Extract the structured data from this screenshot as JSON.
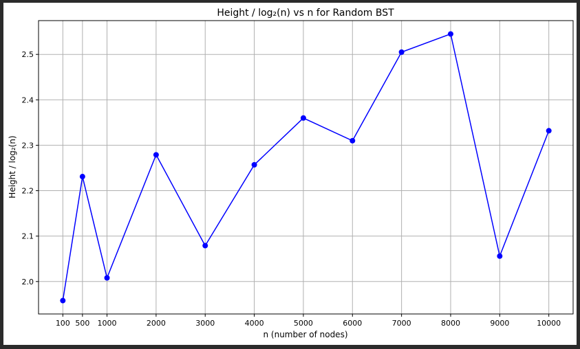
{
  "chart_data": {
    "type": "line",
    "title": "Height / log₂(n) vs n for Random BST",
    "xlabel": "n (number of nodes)",
    "ylabel": "Height / log₂(n)",
    "x": [
      100,
      500,
      1000,
      2000,
      3000,
      4000,
      5000,
      6000,
      7000,
      8000,
      9000,
      10000
    ],
    "series": [
      {
        "values": [
          1.958,
          2.231,
          2.008,
          2.279,
          2.079,
          2.257,
          2.36,
          2.31,
          2.505,
          2.545,
          2.056,
          2.332
        ],
        "color": "#0000ff",
        "marker": "circle"
      }
    ],
    "xticks": [
      100,
      500,
      1000,
      2000,
      3000,
      4000,
      5000,
      6000,
      7000,
      8000,
      9000,
      10000
    ],
    "xtick_labels": [
      "100",
      "500",
      "1000",
      "2000",
      "3000",
      "4000",
      "5000",
      "6000",
      "7000",
      "8000",
      "9000",
      "10000"
    ],
    "yticks": [
      2.0,
      2.1,
      2.2,
      2.3,
      2.4,
      2.5
    ],
    "ytick_labels": [
      "2.0",
      "2.1",
      "2.2",
      "2.3",
      "2.4",
      "2.5"
    ],
    "xlim": [
      -395,
      10495
    ],
    "ylim": [
      1.9286,
      2.5744
    ],
    "grid": true,
    "legend": "none"
  }
}
